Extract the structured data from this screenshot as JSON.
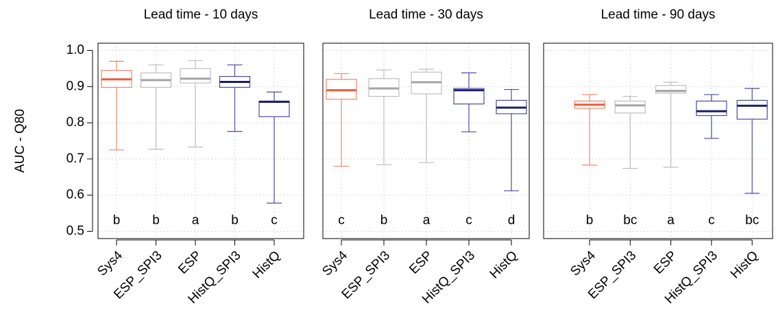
{
  "chart_data": [
    {
      "type": "box",
      "title": "Lead time - 10 days",
      "ylabel": "AUC - Q80",
      "categories": [
        "Sys4",
        "ESP_SPI3",
        "ESP",
        "HistQ_SPI3",
        "HistQ"
      ],
      "boxes": [
        {
          "min": 0.725,
          "q1": 0.898,
          "median": 0.92,
          "q3": 0.945,
          "max": 0.97
        },
        {
          "min": 0.727,
          "q1": 0.898,
          "median": 0.918,
          "q3": 0.938,
          "max": 0.96
        },
        {
          "min": 0.733,
          "q1": 0.91,
          "median": 0.922,
          "q3": 0.95,
          "max": 0.972
        },
        {
          "min": 0.776,
          "q1": 0.898,
          "median": 0.913,
          "q3": 0.928,
          "max": 0.96
        },
        {
          "min": 0.578,
          "q1": 0.817,
          "median": 0.858,
          "q3": 0.86,
          "max": 0.885
        }
      ],
      "letters": [
        "b",
        "b",
        "a",
        "b",
        "c"
      ],
      "colors": [
        "#f4826c",
        "#bdbdbd",
        "#bdbdbd",
        "#4a4aa0",
        "#4a4aa0"
      ],
      "median_colors": [
        "#ef5a3c",
        "#a3a3a3",
        "#a3a3a3",
        "#1c1c6e",
        "#1c1c6e"
      ],
      "ylim": [
        0.48,
        1.02
      ],
      "yticks": [
        0.5,
        0.6,
        0.7,
        0.8,
        0.9,
        {
          "value": 1,
          "label": "1.0"
        }
      ],
      "show_ytick_labels": true,
      "grid": true
    },
    {
      "type": "box",
      "title": "Lead time - 30 days",
      "categories": [
        "Sys4",
        "ESP_SPI3",
        "ESP",
        "HistQ_SPI3",
        "HistQ"
      ],
      "boxes": [
        {
          "min": 0.68,
          "q1": 0.865,
          "median": 0.89,
          "q3": 0.92,
          "max": 0.936
        },
        {
          "min": 0.684,
          "q1": 0.873,
          "median": 0.895,
          "q3": 0.922,
          "max": 0.946
        },
        {
          "min": 0.69,
          "q1": 0.88,
          "median": 0.912,
          "q3": 0.94,
          "max": 0.948
        },
        {
          "min": 0.775,
          "q1": 0.852,
          "median": 0.89,
          "q3": 0.895,
          "max": 0.938
        },
        {
          "min": 0.612,
          "q1": 0.825,
          "median": 0.842,
          "q3": 0.862,
          "max": 0.892
        }
      ],
      "letters": [
        "c",
        "b",
        "a",
        "c",
        "d"
      ],
      "colors": [
        "#f4826c",
        "#bdbdbd",
        "#bdbdbd",
        "#4a4aa0",
        "#4a4aa0"
      ],
      "median_colors": [
        "#ef5a3c",
        "#a3a3a3",
        "#a3a3a3",
        "#1c1c6e",
        "#1c1c6e"
      ],
      "ylim": [
        0.48,
        1.02
      ],
      "yticks": [
        0.5,
        0.6,
        0.7,
        0.8,
        0.9,
        1
      ],
      "show_ytick_labels": false,
      "grid": true
    },
    {
      "type": "box",
      "title": "Lead time - 90 days",
      "categories": [
        "Sys4",
        "ESP_SPI3",
        "ESP",
        "HistQ_SPI3",
        "HistQ"
      ],
      "boxes": [
        {
          "min": 0.683,
          "q1": 0.84,
          "median": 0.85,
          "q3": 0.86,
          "max": 0.878
        },
        {
          "min": 0.674,
          "q1": 0.827,
          "median": 0.848,
          "q3": 0.86,
          "max": 0.873
        },
        {
          "min": 0.677,
          "q1": 0.882,
          "median": 0.888,
          "q3": 0.903,
          "max": 0.912
        },
        {
          "min": 0.757,
          "q1": 0.82,
          "median": 0.832,
          "q3": 0.86,
          "max": 0.878
        },
        {
          "min": 0.605,
          "q1": 0.81,
          "median": 0.847,
          "q3": 0.862,
          "max": 0.895
        }
      ],
      "letters": [
        "b",
        "bc",
        "a",
        "c",
        "bc"
      ],
      "colors": [
        "#f4826c",
        "#bdbdbd",
        "#bdbdbd",
        "#4a4aa0",
        "#4a4aa0"
      ],
      "median_colors": [
        "#ef5a3c",
        "#a3a3a3",
        "#a3a3a3",
        "#1c1c6e",
        "#1c1c6e"
      ],
      "ylim": [
        0.48,
        1.02
      ],
      "yticks": [
        0.5,
        0.6,
        0.7,
        0.8,
        0.9,
        1
      ],
      "show_ytick_labels": false,
      "grid": true
    }
  ]
}
